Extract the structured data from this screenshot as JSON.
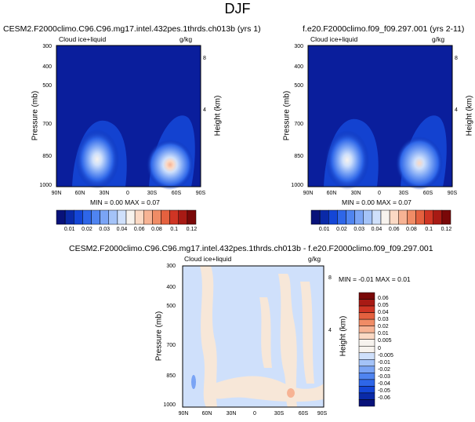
{
  "main_title": "DJF",
  "panels": [
    {
      "title": "CESM2.F2000climo.C96.C96.mg17.intel.432pes.1thrds.ch013b (yrs 1)",
      "field_label": "Cloud ice+liquid",
      "units": "g/kg",
      "minmax": "MIN =   0.00   MAX =   0.07"
    },
    {
      "title": "f.e20.F2000climo.f09_f09.297.001 (yrs 2-11)",
      "field_label": "Cloud ice+liquid",
      "units": "g/kg",
      "minmax": "MIN =   0.00   MAX =   0.07"
    },
    {
      "title": "CESM2.F2000climo.C96.C96.mg17.intel.432pes.1thrds.ch013b - f.e20.F2000climo.f09_f09.297.001",
      "field_label": "Cloud ice+liquid",
      "units": "g/kg",
      "minmax": "MIN =  -0.01   MAX =   0.01"
    }
  ],
  "axes": {
    "y_title": "Pressure (mb)",
    "y2_title": "Height (km)",
    "y_ticks": [
      "300",
      "400",
      "500",
      "700",
      "850",
      "1000"
    ],
    "y2_ticks": [
      "8",
      "4"
    ],
    "x_ticks": [
      "90N",
      "60N",
      "30N",
      "0",
      "30S",
      "60S",
      "90S"
    ]
  },
  "colorbar_main": {
    "labels": [
      "0.01",
      "0.02",
      "0.03",
      "0.04",
      "0.06",
      "0.08",
      "0.1",
      "0.12"
    ],
    "colors": [
      "#08127a",
      "#0a2aa8",
      "#1446d6",
      "#2e66e8",
      "#4f84f0",
      "#7aa4f5",
      "#a4c3f8",
      "#cfe0fb",
      "#f7f3ee",
      "#fbd9c4",
      "#f7b394",
      "#f08c66",
      "#e4613f",
      "#cf3524",
      "#a81a14",
      "#7a0808"
    ]
  },
  "colorbar_diff": {
    "labels": [
      "0.06",
      "0.05",
      "0.04",
      "0.03",
      "0.02",
      "0.01",
      "0.005",
      "0",
      "-0.005",
      "-0.01",
      "-0.02",
      "-0.03",
      "-0.04",
      "-0.05",
      "-0.06"
    ],
    "colors": [
      "#7a0808",
      "#a81a14",
      "#cf3524",
      "#e4613f",
      "#f08c66",
      "#f7b394",
      "#fbd9c4",
      "#f7f3ee",
      "#f7f3ee",
      "#cfe0fb",
      "#a4c3f8",
      "#7aa4f5",
      "#4f84f0",
      "#2e66e8",
      "#1446d6",
      "#0a2aa8",
      "#08127a"
    ]
  },
  "chart_data": [
    {
      "type": "heatmap",
      "title": "CESM2.F2000climo.C96.C96.mg17.intel.432pes.1thrds.ch013b (yrs 1)",
      "subtitle": "Cloud ice+liquid",
      "units": "g/kg",
      "xlabel": "",
      "ylabel": "Pressure (mb)",
      "y2label": "Height (km)",
      "x": [
        "90N",
        "60N",
        "30N",
        "0",
        "30S",
        "60S",
        "90S"
      ],
      "y": [
        300,
        400,
        500,
        700,
        850,
        1000
      ],
      "ylim": [
        1000,
        300
      ],
      "min": 0.0,
      "max": 0.07,
      "features": [
        {
          "lat": 50,
          "pressure": 870,
          "value": 0.04
        },
        {
          "lat": -55,
          "pressure": 870,
          "value": 0.07
        }
      ]
    },
    {
      "type": "heatmap",
      "title": "f.e20.F2000climo.f09_f09.297.001 (yrs 2-11)",
      "subtitle": "Cloud ice+liquid",
      "units": "g/kg",
      "xlabel": "",
      "ylabel": "Pressure (mb)",
      "y2label": "Height (km)",
      "x": [
        "90N",
        "60N",
        "30N",
        "0",
        "30S",
        "60S",
        "90S"
      ],
      "y": [
        300,
        400,
        500,
        700,
        850,
        1000
      ],
      "ylim": [
        1000,
        300
      ],
      "min": 0.0,
      "max": 0.07,
      "features": [
        {
          "lat": 50,
          "pressure": 870,
          "value": 0.04
        },
        {
          "lat": -55,
          "pressure": 870,
          "value": 0.07
        }
      ]
    },
    {
      "type": "heatmap",
      "title": "CESM2.F2000climo.C96.C96.mg17.intel.432pes.1thrds.ch013b - f.e20.F2000climo.f09_f09.297.001",
      "subtitle": "Cloud ice+liquid",
      "units": "g/kg",
      "xlabel": "",
      "ylabel": "Pressure (mb)",
      "y2label": "Height (km)",
      "x": [
        "90N",
        "60N",
        "30N",
        "0",
        "30S",
        "60S",
        "90S"
      ],
      "y": [
        300,
        400,
        500,
        700,
        850,
        1000
      ],
      "ylim": [
        1000,
        300
      ],
      "min": -0.01,
      "max": 0.01
    }
  ]
}
